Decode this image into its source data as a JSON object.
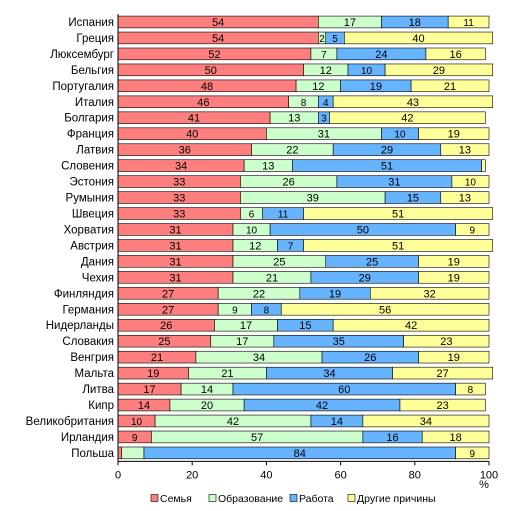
{
  "chart_data": {
    "type": "bar",
    "orientation": "horizontal",
    "stacked": true,
    "categories": [
      "Испания",
      "Греция",
      "Люксембург",
      "Бельгия",
      "Португалия",
      "Италия",
      "Болгария",
      "Франция",
      "Латвия",
      "Словения",
      "Эстония",
      "Румыния",
      "Швеция",
      "Хорватия",
      "Австрия",
      "Дания",
      "Чехия",
      "Финляндия",
      "Германия",
      "Нидерланды",
      "Словакия",
      "Венгрия",
      "Мальта",
      "Литва",
      "Кипр",
      "Великобритания",
      "Ирландия",
      "Польша"
    ],
    "series": [
      {
        "name": "Семья",
        "color": "#ff7f7f",
        "values": [
          54,
          54,
          52,
          50,
          48,
          46,
          41,
          40,
          36,
          34,
          33,
          33,
          33,
          31,
          31,
          31,
          31,
          27,
          27,
          26,
          25,
          21,
          19,
          17,
          14,
          10,
          9,
          1
        ]
      },
      {
        "name": "Образование",
        "color": "#ccffcc",
        "values": [
          17,
          2,
          7,
          12,
          12,
          8,
          13,
          31,
          22,
          13,
          26,
          39,
          6,
          10,
          12,
          25,
          21,
          22,
          9,
          17,
          17,
          34,
          21,
          14,
          20,
          42,
          57,
          6
        ]
      },
      {
        "name": "Работа",
        "color": "#66b3ff",
        "values": [
          18,
          5,
          24,
          10,
          19,
          4,
          3,
          10,
          29,
          51,
          31,
          15,
          11,
          50,
          7,
          25,
          29,
          19,
          8,
          15,
          35,
          26,
          34,
          60,
          42,
          14,
          16,
          84
        ]
      },
      {
        "name": "Другие причины",
        "color": "#ffff99",
        "values": [
          11,
          40,
          16,
          29,
          21,
          43,
          42,
          19,
          13,
          1,
          10,
          13,
          51,
          9,
          51,
          19,
          19,
          32,
          56,
          42,
          23,
          19,
          27,
          8,
          23,
          34,
          18,
          9
        ]
      }
    ],
    "value_labels": [
      [
        "54",
        "17",
        "18",
        "11"
      ],
      [
        "54",
        "2",
        "5",
        "40"
      ],
      [
        "52",
        "7",
        "24",
        "16"
      ],
      [
        "50",
        "12",
        "10",
        "29"
      ],
      [
        "48",
        "12",
        "19",
        "21"
      ],
      [
        "46",
        "8",
        "4",
        "43"
      ],
      [
        "41",
        "13",
        "3",
        "42"
      ],
      [
        "40",
        "31",
        "10",
        "19"
      ],
      [
        "36",
        "22",
        "29",
        "13"
      ],
      [
        "34",
        "13",
        "51",
        ""
      ],
      [
        "33",
        "26",
        "31",
        "10"
      ],
      [
        "33",
        "39",
        "15",
        "13"
      ],
      [
        "33",
        "6",
        "11",
        "51"
      ],
      [
        "31",
        "10",
        "50",
        "9"
      ],
      [
        "31",
        "12",
        "7",
        "51"
      ],
      [
        "31",
        "25",
        "25",
        "19"
      ],
      [
        "31",
        "21",
        "29",
        "19"
      ],
      [
        "27",
        "22",
        "19",
        "32"
      ],
      [
        "27",
        "9",
        "8",
        "56"
      ],
      [
        "26",
        "17",
        "15",
        "42"
      ],
      [
        "25",
        "17",
        "35",
        "23"
      ],
      [
        "21",
        "34",
        "26",
        "19"
      ],
      [
        "19",
        "21",
        "34",
        "27"
      ],
      [
        "17",
        "14",
        "60",
        "8"
      ],
      [
        "14",
        "20",
        "42",
        "23"
      ],
      [
        "10",
        "42",
        "14",
        "34"
      ],
      [
        "9",
        "57",
        "16",
        "18"
      ],
      [
        "",
        "",
        "84",
        "9"
      ]
    ],
    "x_ticks": [
      "0",
      "20",
      "40",
      "60",
      "80",
      "100"
    ],
    "xlim": [
      0,
      100
    ],
    "xlabel": "%",
    "legend": [
      "Семья",
      "Образование",
      "Работа",
      "Другие причины"
    ],
    "legend_position": "bottom"
  }
}
